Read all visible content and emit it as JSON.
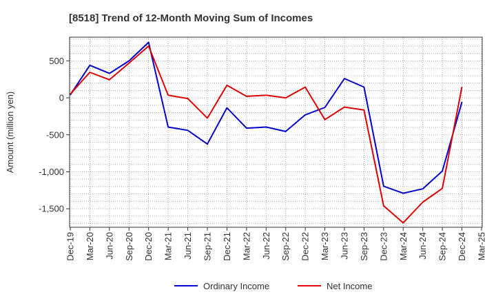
{
  "chart_data": {
    "type": "line",
    "title": "[8518]  Trend of 12-Month Moving Sum of Incomes",
    "xlabel": "",
    "ylabel": "Amount (million yen)",
    "ylim": [
      -1750,
      820
    ],
    "yticks": [
      500,
      0,
      -500,
      -1000,
      -1500
    ],
    "ytick_labels": [
      "500",
      "0",
      "-500",
      "-1,000",
      "-1,500"
    ],
    "categories": [
      "Dec-19",
      "Mar-20",
      "Jun-20",
      "Sep-20",
      "Dec-20",
      "Mar-21",
      "Jun-21",
      "Sep-21",
      "Dec-21",
      "Mar-22",
      "Jun-22",
      "Sep-22",
      "Dec-22",
      "Mar-23",
      "Jun-23",
      "Sep-23",
      "Dec-23",
      "Mar-24",
      "Jun-24",
      "Sep-24",
      "Dec-24",
      "Mar-25"
    ],
    "xtick_labels": [
      "Dec-19",
      "Mar-20",
      "Jun-20",
      "Sep-20",
      "Dec-20",
      "Mar-21",
      "Jun-21",
      "Sep-21",
      "Dec-21",
      "Mar-22",
      "Jun-22",
      "Sep-22",
      "Dec-22",
      "Mar-23",
      "Jun-23",
      "Sep-23",
      "Dec-23",
      "Mar-24",
      "Jun-24",
      "Sep-24",
      "Dec-24",
      "Mar-25"
    ],
    "grid": true,
    "legend_position": "bottom",
    "series": [
      {
        "name": "Ordinary Income",
        "color": "#0000cc",
        "values": [
          40,
          440,
          330,
          500,
          750,
          -395,
          -440,
          -625,
          -135,
          -410,
          -395,
          -455,
          -230,
          -130,
          260,
          145,
          -1195,
          -1290,
          -1230,
          -990,
          -55,
          null
        ]
      },
      {
        "name": "Net Income",
        "color": "#dd0000",
        "values": [
          50,
          345,
          245,
          470,
          700,
          35,
          -10,
          -275,
          170,
          20,
          35,
          0,
          145,
          -295,
          -125,
          -165,
          -1460,
          -1690,
          -1410,
          -1225,
          150,
          null
        ]
      }
    ]
  }
}
